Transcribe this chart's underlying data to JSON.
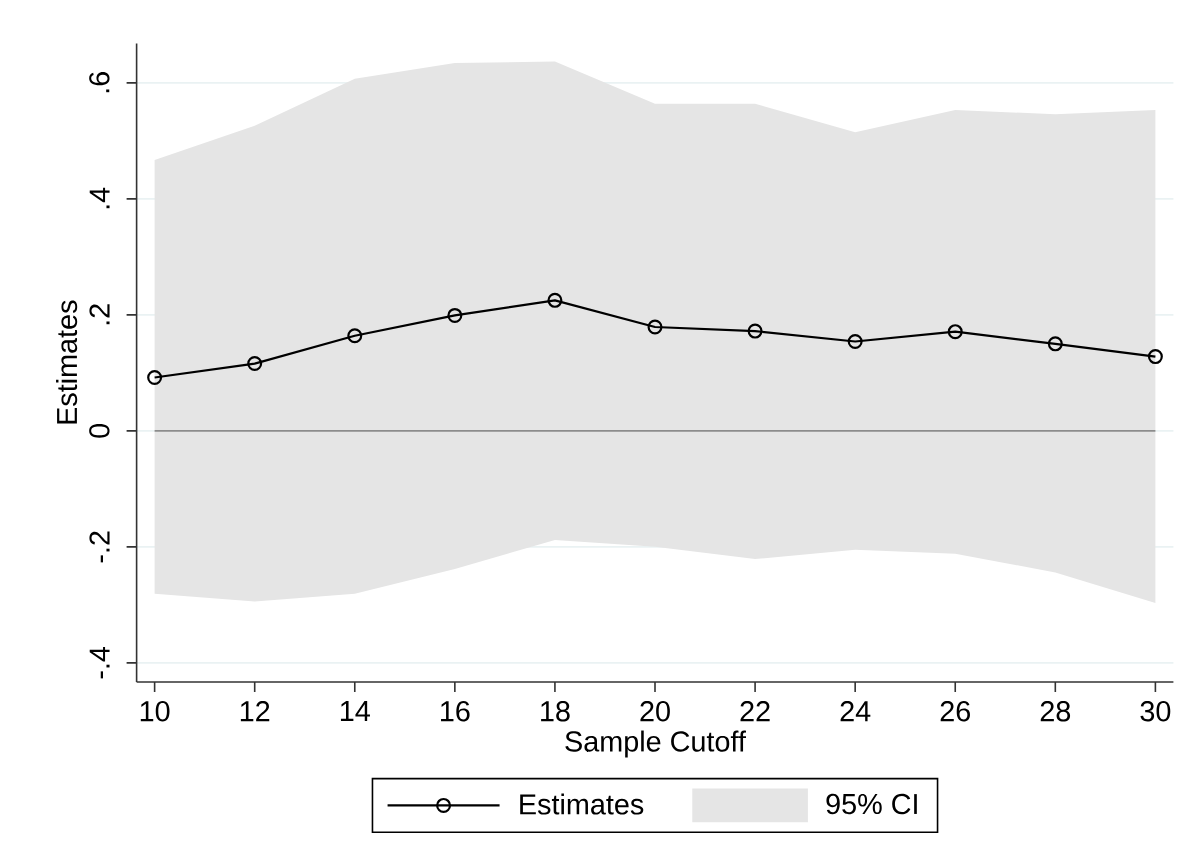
{
  "chart_data": {
    "type": "line",
    "xlabel": "Sample Cutoff",
    "ylabel": "Estimates",
    "x": [
      10,
      12,
      14,
      16,
      18,
      20,
      22,
      24,
      26,
      28,
      30
    ],
    "series": [
      {
        "name": "Estimates",
        "color": "#000000",
        "values": [
          0.092,
          0.116,
          0.164,
          0.199,
          0.225,
          0.179,
          0.172,
          0.154,
          0.171,
          0.15,
          0.128
        ]
      },
      {
        "name": "95% CI",
        "type": "area",
        "color": "#e5e5e5",
        "values": [
          null,
          null,
          null,
          null,
          null,
          null,
          null,
          null,
          null,
          null,
          null
        ],
        "upper": [
          0.467,
          0.526,
          0.607,
          0.634,
          0.637,
          0.564,
          0.564,
          0.515,
          0.553,
          0.546,
          0.553
        ],
        "lower": [
          -0.281,
          -0.294,
          -0.281,
          -0.238,
          -0.188,
          -0.2,
          -0.221,
          -0.205,
          -0.212,
          -0.244,
          -0.297
        ]
      }
    ],
    "xlim": [
      9.64,
      30.36
    ],
    "ylim": [
      -0.433,
      0.668
    ],
    "xticks": [
      10,
      12,
      14,
      16,
      18,
      20,
      22,
      24,
      26,
      28,
      30
    ],
    "yticks": [
      {
        "value": -0.4,
        "label": "-.4"
      },
      {
        "value": -0.2,
        "label": "-.2"
      },
      {
        "value": 0,
        "label": "0"
      },
      {
        "value": 0.2,
        "label": ".2"
      },
      {
        "value": 0.4,
        "label": ".4"
      },
      {
        "value": 0.6,
        "label": ".6"
      }
    ],
    "ref_lines": [
      {
        "axis": "y",
        "value": 0,
        "color": "#8c8c8c"
      }
    ],
    "grid": "y",
    "legend": "bottom",
    "marker": "circle"
  }
}
